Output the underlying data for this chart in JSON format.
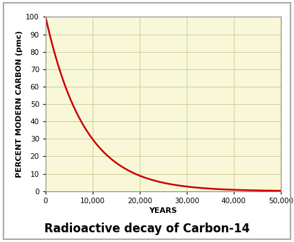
{
  "title": "Radioactive decay of Carbon-14",
  "xlabel": "YEARS",
  "ylabel": "PERCENT MODERN CARBON (pmc)",
  "xlim": [
    0,
    50000
  ],
  "ylim": [
    0,
    100
  ],
  "xticks": [
    0,
    10000,
    20000,
    30000,
    40000,
    50000
  ],
  "yticks": [
    0,
    10,
    20,
    30,
    40,
    50,
    60,
    70,
    80,
    90,
    100
  ],
  "half_life": 5730,
  "line_color": "#cc0000",
  "line_width": 1.8,
  "plot_bg_color": "#f8f8d8",
  "grid_color": "#cccc99",
  "outer_bg": "#ffffff",
  "border_color": "#aaaaaa",
  "title_fontsize": 12,
  "axis_label_fontsize": 8,
  "tick_fontsize": 7.5
}
